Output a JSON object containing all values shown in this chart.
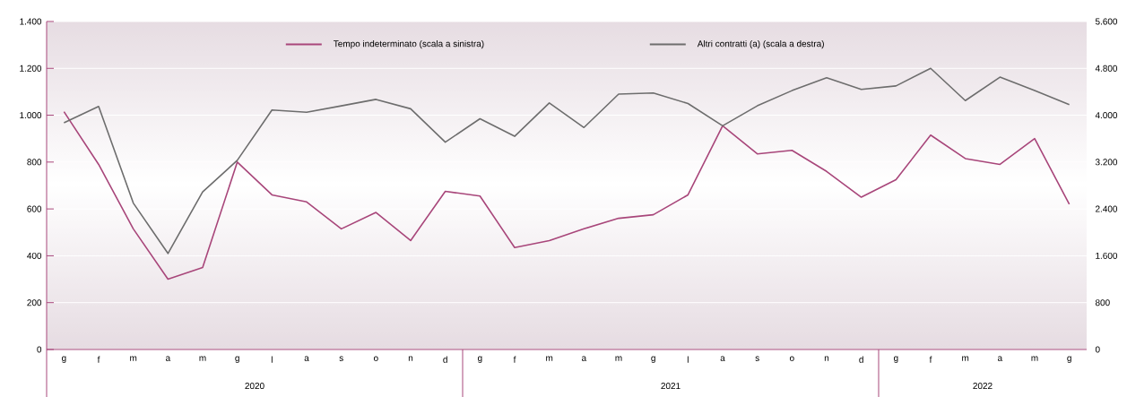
{
  "chart_data": {
    "type": "line",
    "categories": [
      "g",
      "f",
      "m",
      "a",
      "m",
      "g",
      "l",
      "a",
      "s",
      "o",
      "n",
      "d",
      "g",
      "f",
      "m",
      "a",
      "m",
      "g",
      "l",
      "a",
      "s",
      "o",
      "n",
      "d",
      "g",
      "f",
      "m",
      "a",
      "m",
      "g"
    ],
    "series": [
      {
        "name": "Tempo indeterminato (scala a sinistra)",
        "color": "#a8467a",
        "axis": "y",
        "values": [
          1015,
          790,
          515,
          300,
          350,
          800,
          660,
          630,
          515,
          585,
          465,
          675,
          655,
          435,
          465,
          515,
          560,
          575,
          660,
          955,
          835,
          850,
          760,
          650,
          725,
          915,
          815,
          790,
          900,
          620
        ]
      },
      {
        "name": "Altri contratti (a) (scala a destra)",
        "color": "#6d6d6d",
        "axis": "y2",
        "values": [
          3870,
          4150,
          2500,
          1640,
          2690,
          3230,
          4090,
          4050,
          4160,
          4270,
          4110,
          3540,
          3940,
          3640,
          4210,
          3790,
          4360,
          4380,
          4200,
          3820,
          4160,
          4420,
          4640,
          4440,
          4500,
          4800,
          4250,
          4650,
          4420,
          4180
        ]
      }
    ],
    "ylim": [
      0,
      1400
    ],
    "yticks": [
      0,
      200,
      400,
      600,
      800,
      {
        "value": 1000,
        "label": "1.000"
      },
      {
        "value": 1200,
        "label": "1.200"
      },
      {
        "value": 1400,
        "label": "1.400"
      }
    ],
    "y2lim": [
      0,
      5600
    ],
    "y2ticks": [
      0,
      800,
      {
        "value": 1600,
        "label": "1.600"
      },
      {
        "value": 2400,
        "label": "2.400"
      },
      {
        "value": 3200,
        "label": "3.200"
      },
      {
        "value": 4000,
        "label": "4.000"
      },
      {
        "value": 4800,
        "label": "4.800"
      },
      {
        "value": 5600,
        "label": "5.600"
      }
    ],
    "grid": "y",
    "legend": "top",
    "annotations": [
      "2020",
      "2021",
      "2022"
    ]
  }
}
